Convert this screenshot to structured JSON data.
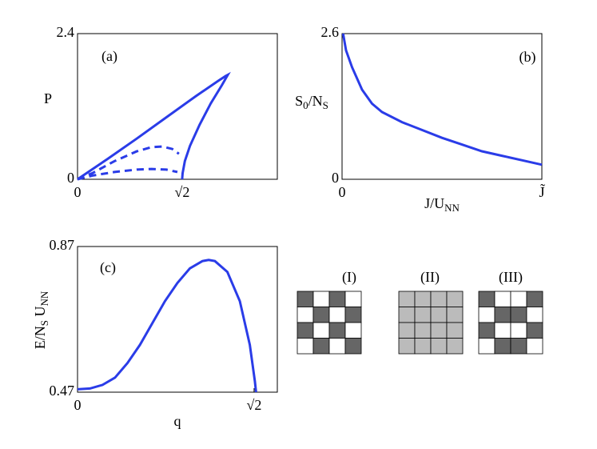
{
  "chart_data": [
    {
      "type": "line",
      "annotation": "(a)",
      "y_label": "P",
      "xlim": [
        0,
        2.7
      ],
      "xticks": [
        0,
        {
          "value": 1.414,
          "label": "√2"
        }
      ],
      "ylim": [
        0,
        2.4
      ],
      "yticks": [
        0,
        2.4
      ],
      "series": [
        {
          "color": "#2a3ce8",
          "linestyle": "solid",
          "x": [
            0,
            0.4,
            0.8,
            1.2,
            1.6,
            1.9,
            2.0,
            2.03,
            1.95,
            1.8,
            1.65,
            1.52,
            1.45,
            1.42,
            1.414
          ],
          "values": [
            0,
            0.33,
            0.67,
            1.02,
            1.37,
            1.62,
            1.7,
            1.72,
            1.55,
            1.25,
            0.9,
            0.55,
            0.3,
            0.1,
            0
          ]
        },
        {
          "color": "#2a3ce8",
          "linestyle": "dashed",
          "x": [
            0,
            0.2,
            0.5,
            0.8,
            1.0,
            1.15,
            1.28,
            1.37
          ],
          "values": [
            0,
            0.1,
            0.3,
            0.46,
            0.53,
            0.54,
            0.5,
            0.42
          ]
        },
        {
          "color": "#2a3ce8",
          "linestyle": "dashed",
          "x": [
            0,
            0.2,
            0.5,
            0.8,
            1.0,
            1.2,
            1.35
          ],
          "values": [
            0,
            0.06,
            0.12,
            0.16,
            0.17,
            0.16,
            0.12
          ]
        }
      ]
    },
    {
      "type": "line",
      "annotation": "(b)",
      "y_label": [
        "S",
        "0",
        "/N",
        "S"
      ],
      "x_label": [
        "J/U",
        "NN"
      ],
      "xlim": [
        0,
        1
      ],
      "xticks": [
        0,
        {
          "value": 1,
          "label": "J̃"
        }
      ],
      "ylim": [
        0,
        2.6
      ],
      "yticks": [
        0,
        2.6
      ],
      "series": [
        {
          "color": "#2a3ce8",
          "linestyle": "solid",
          "x": [
            0.005,
            0.02,
            0.05,
            0.1,
            0.15,
            0.2,
            0.3,
            0.4,
            0.5,
            0.6,
            0.7,
            0.8,
            0.9,
            1.0
          ],
          "values": [
            2.6,
            2.3,
            2.0,
            1.6,
            1.35,
            1.2,
            1.02,
            0.88,
            0.74,
            0.62,
            0.5,
            0.42,
            0.34,
            0.26
          ]
        }
      ]
    },
    {
      "type": "line",
      "annotation": "(c)",
      "y_label": [
        "E/N",
        "S",
        " U",
        "NN"
      ],
      "x_label": "q",
      "xlim": [
        0,
        1.6
      ],
      "xticks": [
        0,
        {
          "value": 1.414,
          "label": "√2"
        }
      ],
      "ylim": [
        0.47,
        0.87
      ],
      "yticks": [
        0.47,
        0.87
      ],
      "series": [
        {
          "color": "#2a3ce8",
          "linestyle": "solid",
          "x": [
            0,
            0.1,
            0.2,
            0.3,
            0.4,
            0.5,
            0.6,
            0.7,
            0.8,
            0.9,
            1.0,
            1.05,
            1.1,
            1.2,
            1.3,
            1.38,
            1.42,
            1.43
          ],
          "values": [
            0.478,
            0.48,
            0.49,
            0.51,
            0.55,
            0.6,
            0.66,
            0.72,
            0.77,
            0.81,
            0.83,
            0.833,
            0.83,
            0.8,
            0.72,
            0.6,
            0.5,
            0.47
          ]
        }
      ]
    }
  ],
  "pattern_labels": [
    "(I)",
    "(II)",
    "(III)"
  ]
}
